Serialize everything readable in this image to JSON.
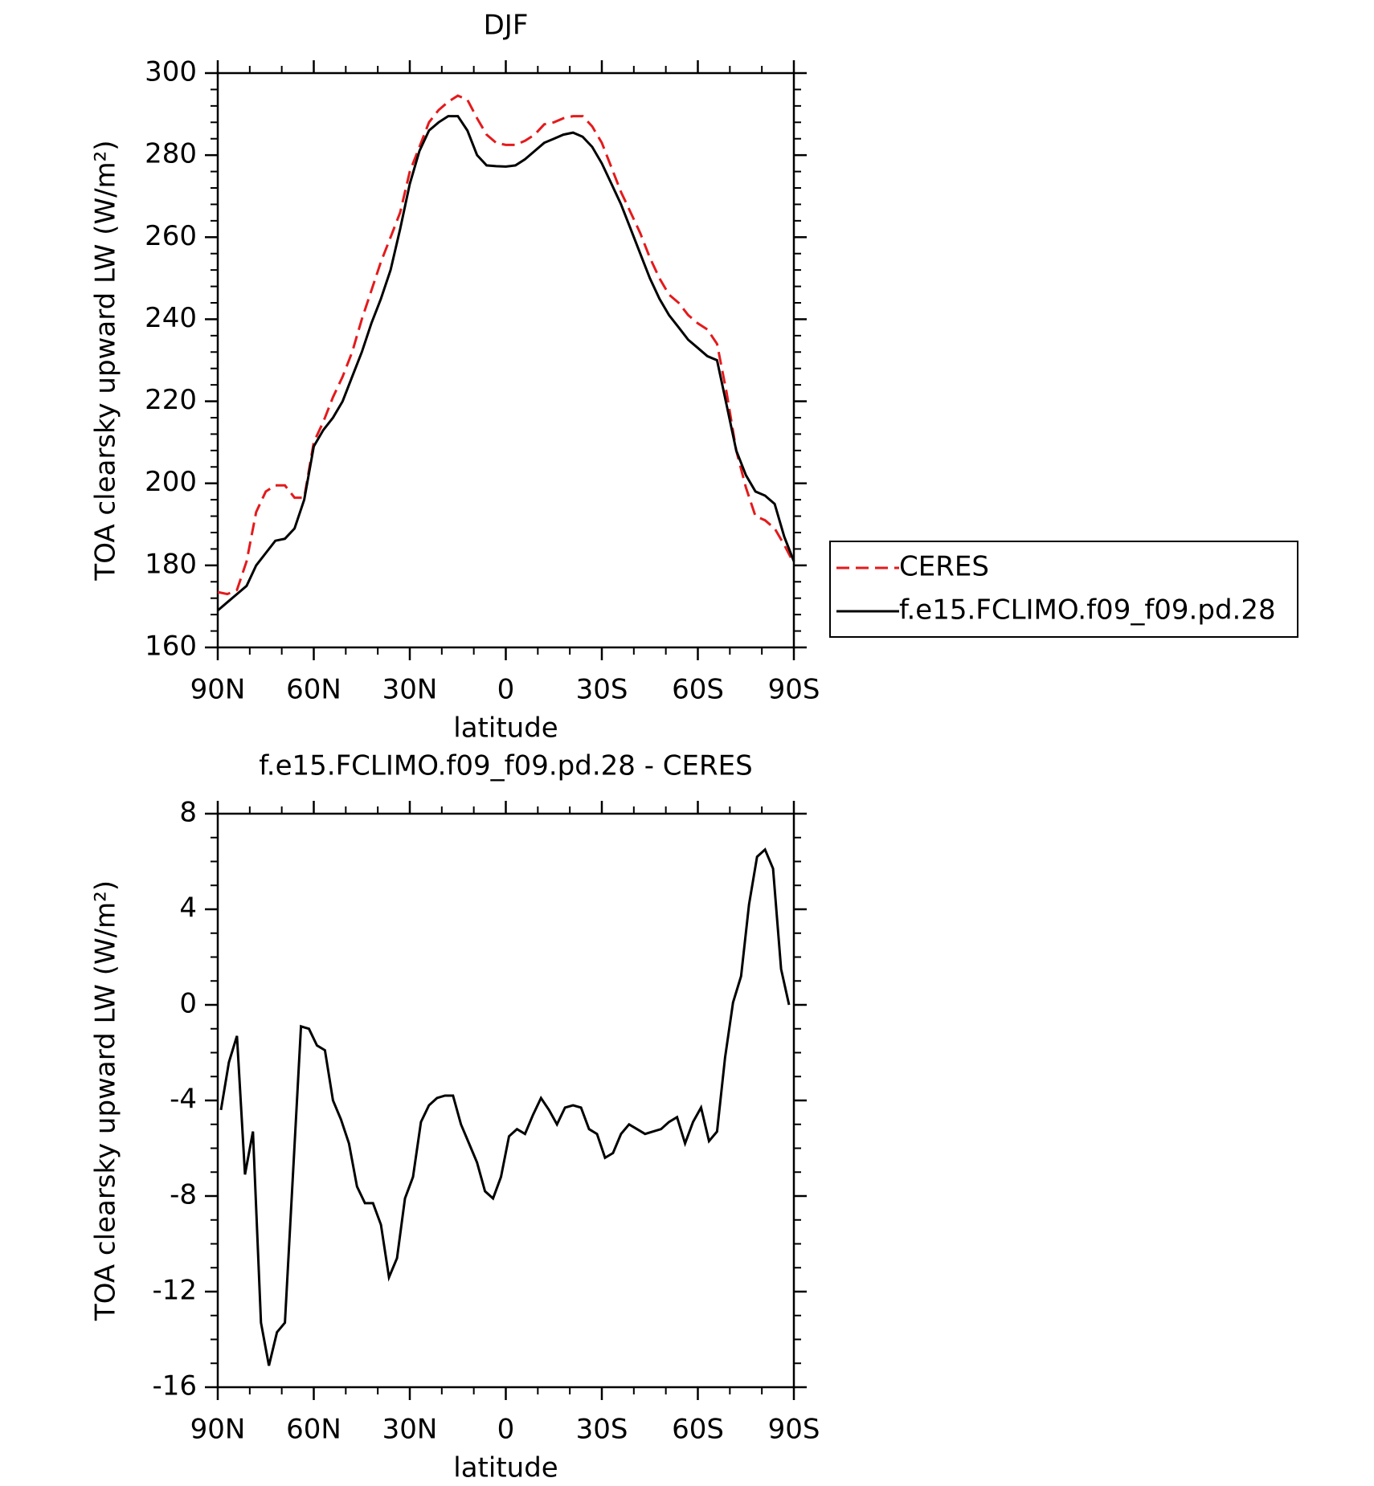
{
  "chart_data": [
    {
      "type": "line",
      "title": "DJF",
      "xlabel": "latitude",
      "ylabel": "TOA clearsky upward LW (W/m²)",
      "xlim": [
        90,
        -90
      ],
      "xticks": [
        {
          "value": 90,
          "label": "90N"
        },
        {
          "value": 60,
          "label": "60N"
        },
        {
          "value": 30,
          "label": "30N"
        },
        0,
        {
          "value": -30,
          "label": "30S"
        },
        {
          "value": -60,
          "label": "60S"
        },
        {
          "value": -90,
          "label": "90S"
        }
      ],
      "ylim": [
        160,
        300
      ],
      "yticks": [
        160,
        180,
        200,
        220,
        240,
        260,
        280,
        300
      ],
      "legend": "right",
      "x": [
        90,
        87,
        84,
        81,
        78,
        75,
        72,
        69,
        66,
        63,
        60,
        57,
        54,
        51,
        48,
        45,
        42,
        39,
        36,
        33,
        30,
        27,
        24,
        21,
        18,
        15,
        12,
        9,
        6,
        3,
        0,
        -3,
        -6,
        -9,
        -12,
        -15,
        -18,
        -21,
        -24,
        -27,
        -30,
        -33,
        -36,
        -39,
        -42,
        -45,
        -48,
        -51,
        -54,
        -57,
        -60,
        -63,
        -66,
        -69,
        -72,
        -75,
        -78,
        -81,
        -84,
        -87,
        -90
      ],
      "series": [
        {
          "name": "CERES",
          "color": "#e41a1c",
          "dashed": true,
          "values": [
            173.5,
            173,
            174,
            181,
            193,
            198,
            199.5,
            199.5,
            196.5,
            196.5,
            210,
            215,
            221,
            226,
            232,
            240,
            247,
            254,
            260,
            266,
            276,
            282,
            288,
            291,
            293,
            294.5,
            293.5,
            289,
            285,
            283,
            282.5,
            282.5,
            283.5,
            285,
            287.5,
            288,
            289,
            289.5,
            289.5,
            287,
            283,
            277,
            271,
            266,
            261,
            255,
            250,
            246,
            244,
            241,
            239,
            237.5,
            234,
            222,
            208,
            199,
            192,
            191,
            189,
            185,
            180.5
          ]
        },
        {
          "name": "f.e15.FCLIMO.f09_f09.pd.28",
          "color": "#000000",
          "dashed": false,
          "values": [
            169,
            171,
            173,
            175,
            180,
            183,
            186,
            186.5,
            189,
            196,
            209,
            213,
            216,
            220,
            226,
            232,
            239,
            245,
            252,
            262,
            273,
            281,
            286,
            288,
            289.5,
            289.5,
            286,
            280,
            277.5,
            277.3,
            277.2,
            277.5,
            279,
            281,
            283,
            284,
            285,
            285.5,
            284.5,
            282,
            278,
            273,
            268,
            262,
            256,
            250,
            245,
            241,
            238,
            235,
            233,
            231,
            230,
            219,
            208,
            202,
            198,
            197,
            195,
            187,
            181
          ]
        }
      ]
    },
    {
      "type": "line",
      "title": "f.e15.FCLIMO.f09_f09.pd.28 - CERES",
      "xlabel": "latitude",
      "ylabel": "TOA clearsky upward LW (W/m²)",
      "xlim": [
        90,
        -90
      ],
      "xticks": [
        {
          "value": 90,
          "label": "90N"
        },
        {
          "value": 60,
          "label": "60N"
        },
        {
          "value": 30,
          "label": "30N"
        },
        0,
        {
          "value": -30,
          "label": "30S"
        },
        {
          "value": -60,
          "label": "60S"
        },
        {
          "value": -90,
          "label": "90S"
        }
      ],
      "ylim": [
        -16,
        8
      ],
      "yticks": [
        -16,
        -12,
        -8,
        -4,
        0,
        4,
        8
      ],
      "color": "#000000",
      "x": [
        89,
        86.5,
        84,
        81.5,
        79,
        76.5,
        74,
        71.5,
        69,
        64,
        61.5,
        59,
        56.5,
        54,
        51.5,
        49,
        46.5,
        44,
        41.5,
        39,
        36.5,
        34,
        31.5,
        29,
        26.5,
        24,
        21.5,
        19,
        16.5,
        14,
        11.5,
        9,
        6.5,
        4,
        1.5,
        -1,
        -3.5,
        -6,
        -8.5,
        -11,
        -13.5,
        -16,
        -18.5,
        -21,
        -23.5,
        -26,
        -28.5,
        -31,
        -33.5,
        -36,
        -38.5,
        -41,
        -43.5,
        -46,
        -48.5,
        -51,
        -53.5,
        -56,
        -58.5,
        -61,
        -63.5,
        -66,
        -68.5,
        -71,
        -73.5,
        -76,
        -78.5,
        -81,
        -83.5,
        -86,
        -88.5
      ],
      "values": [
        -4.4,
        -2.4,
        -1.3,
        -7.1,
        -5.3,
        -13.3,
        -15.1,
        -13.7,
        -13.3,
        -0.9,
        -1.0,
        -1.7,
        -1.9,
        -4.0,
        -4.8,
        -5.8,
        -7.6,
        -8.3,
        -8.3,
        -9.2,
        -11.4,
        -10.6,
        -8.1,
        -7.2,
        -4.9,
        -4.2,
        -3.9,
        -3.8,
        -3.8,
        -5.0,
        -5.8,
        -6.6,
        -7.8,
        -8.1,
        -7.2,
        -5.5,
        -5.2,
        -5.4,
        -4.6,
        -3.9,
        -4.4,
        -5.0,
        -4.3,
        -4.2,
        -4.3,
        -5.2,
        -5.4,
        -6.4,
        -6.2,
        -5.4,
        -5.0,
        -5.2,
        -5.4,
        -5.3,
        -5.2,
        -4.9,
        -4.7,
        -5.8,
        -4.9,
        -4.3,
        -5.7,
        -5.3,
        -2.2,
        0.1,
        1.2,
        4.2,
        6.2,
        6.5,
        5.7,
        1.5,
        0.0
      ]
    }
  ]
}
